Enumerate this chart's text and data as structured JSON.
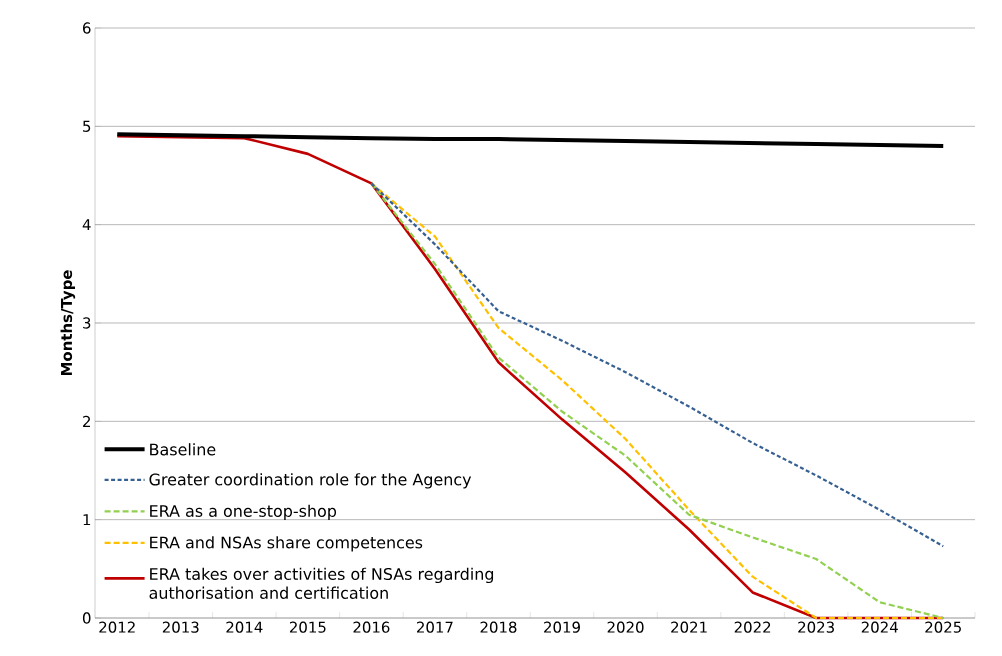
{
  "chart_data": {
    "type": "line",
    "ylabel": "Months/Type",
    "categories": [
      "2012",
      "2013",
      "2014",
      "2015",
      "2016",
      "2017",
      "2018",
      "2019",
      "2020",
      "2021",
      "2022",
      "2023",
      "2024",
      "2025"
    ],
    "series": [
      {
        "name": "Baseline",
        "color": "#000000",
        "line_style": "solid",
        "values": [
          4.92,
          4.91,
          4.9,
          4.89,
          4.88,
          4.87,
          4.87,
          4.86,
          4.85,
          4.84,
          4.83,
          4.82,
          4.81,
          4.8
        ]
      },
      {
        "name": "Greater coordination role for the Agency",
        "color": "#376092",
        "line_style": "dotted",
        "values": [
          null,
          null,
          null,
          null,
          4.42,
          3.8,
          3.12,
          2.82,
          2.5,
          2.15,
          1.78,
          1.45,
          1.1,
          0.73
        ]
      },
      {
        "name": "ERA as a one-stop-shop",
        "color": "#92d050",
        "line_style": "dashed",
        "values": [
          null,
          null,
          null,
          null,
          4.42,
          3.6,
          2.65,
          2.1,
          1.65,
          1.05,
          0.82,
          0.6,
          0.16,
          0
        ]
      },
      {
        "name": "ERA and NSAs share competences",
        "color": "#ffc000",
        "line_style": "dashed",
        "values": [
          null,
          null,
          null,
          null,
          4.42,
          3.88,
          2.95,
          2.42,
          1.82,
          1.1,
          0.42,
          0,
          0,
          0
        ]
      },
      {
        "name": "ERA takes over activities of NSAs regarding authorisation and certification",
        "color": "#c00000",
        "line_style": "solid",
        "values": [
          4.9,
          4.89,
          4.88,
          4.72,
          4.42,
          3.55,
          2.6,
          2.02,
          1.48,
          0.9,
          0.26,
          0,
          0,
          0
        ]
      }
    ],
    "ylim": [
      0,
      6
    ],
    "yticks": [
      0,
      1,
      2,
      3,
      4,
      5,
      6
    ],
    "grid": "y",
    "legend": "bottom left",
    "marker": "none"
  }
}
